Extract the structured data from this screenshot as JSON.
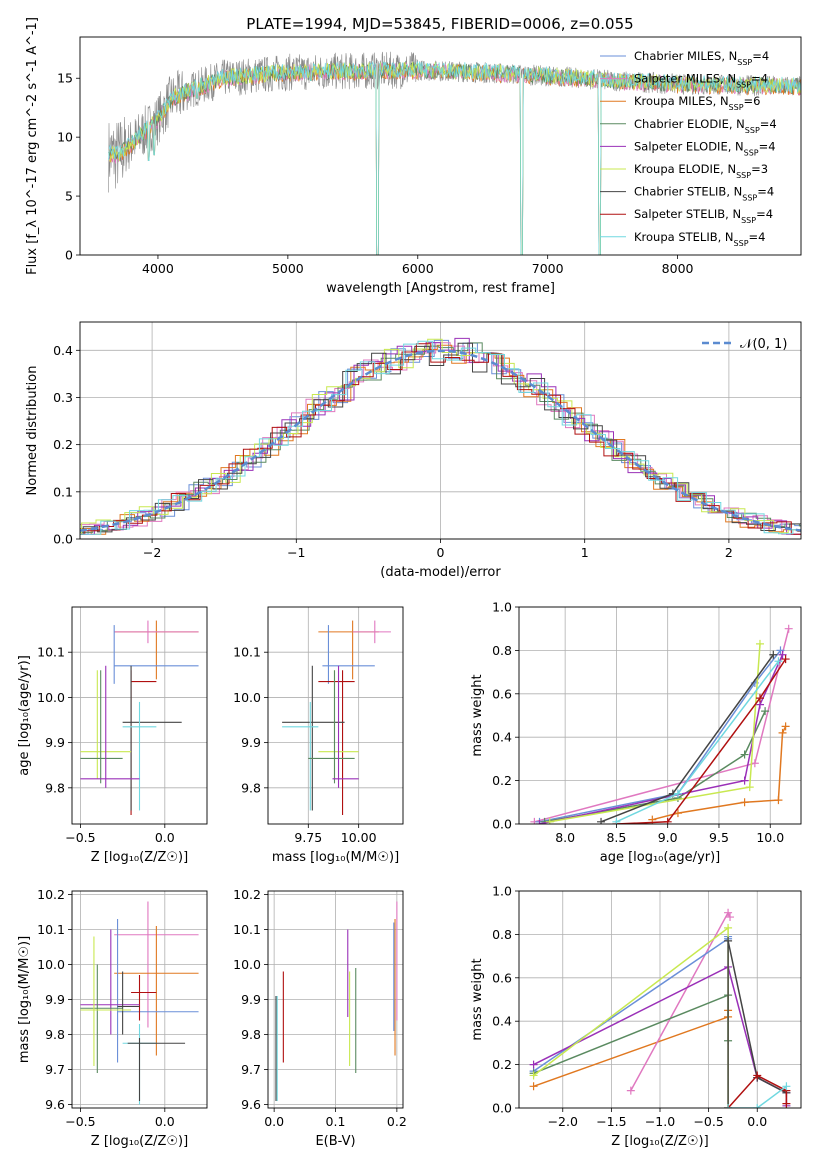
{
  "figure_title": "PLATE=1994, MJD=53845, FIBERID=0006, z=0.055",
  "colors": {
    "Chabrier MILES": "#6a8fd8",
    "Salpeter MILES": "#e078c0",
    "Kroupa MILES": "#e07820",
    "Chabrier ELODIE": "#5a8a60",
    "Salpeter ELODIE": "#9a30b8",
    "Kroupa ELODIE": "#c8e850",
    "Chabrier STELIB": "#444444",
    "Salpeter STELIB": "#b01010",
    "Kroupa STELIB": "#70d8e0",
    "data": "#888888",
    "gauss": "#5b8bd0",
    "grid": "#b0b0b0"
  },
  "chart_data": [
    {
      "id": "spectrum",
      "type": "line",
      "title": "PLATE=1994, MJD=53845, FIBERID=0006, z=0.055",
      "xlabel": "wavelength [Angstrom, rest frame]",
      "ylabel": "Flux [f_λ 10^-17 erg cm^-2 s^-1 A^-1]",
      "xlim": [
        3400,
        8950
      ],
      "ylim": [
        0,
        18.5
      ],
      "xticks": [
        4000,
        5000,
        6000,
        7000,
        8000
      ],
      "yticks": [
        0,
        5,
        10,
        15
      ],
      "grid": false,
      "legend_position": "right",
      "legend": [
        {
          "name": "Chabrier MILES",
          "nssp": "4"
        },
        {
          "name": "Salpeter MILES",
          "nssp": "4"
        },
        {
          "name": "Kroupa MILES",
          "nssp": "6"
        },
        {
          "name": "Chabrier ELODIE",
          "nssp": "4"
        },
        {
          "name": "Salpeter ELODIE",
          "nssp": "4"
        },
        {
          "name": "Kroupa ELODIE",
          "nssp": "3"
        },
        {
          "name": "Chabrier STELIB",
          "nssp": "4"
        },
        {
          "name": "Salpeter STELIB",
          "nssp": "4"
        },
        {
          "name": "Kroupa STELIB",
          "nssp": "4"
        }
      ],
      "continuum": [
        [
          3600,
          8.5
        ],
        [
          3700,
          8.5
        ],
        [
          3800,
          9.5
        ],
        [
          3900,
          10.5
        ],
        [
          4000,
          11.5
        ],
        [
          4100,
          13.2
        ],
        [
          4300,
          14.2
        ],
        [
          4500,
          15.0
        ],
        [
          4700,
          15.2
        ],
        [
          5000,
          15.5
        ],
        [
          5500,
          15.6
        ],
        [
          6000,
          15.7
        ],
        [
          6500,
          15.5
        ],
        [
          7000,
          15.2
        ],
        [
          7500,
          14.8
        ],
        [
          8000,
          14.5
        ],
        [
          8500,
          14.4
        ],
        [
          8950,
          14.3
        ]
      ],
      "dips": [
        [
          3930,
          7.0
        ],
        [
          3970,
          7.5
        ],
        [
          4300,
          12.3
        ],
        [
          5175,
          13.8
        ],
        [
          5690,
          0
        ],
        [
          6800,
          0
        ],
        [
          7400,
          0
        ]
      ]
    },
    {
      "id": "residuals",
      "type": "step",
      "xlabel": "(data-model)/error",
      "ylabel": "Normed distribution",
      "xlim": [
        -2.5,
        2.5
      ],
      "ylim": [
        0,
        0.46
      ],
      "xticks": [
        -2,
        -1,
        0,
        1,
        2
      ],
      "yticks": [
        0.0,
        0.1,
        0.2,
        0.3,
        0.4
      ],
      "grid": true,
      "legend_position": "top-right",
      "gauss_label": "𝒩(0, 1)"
    },
    {
      "id": "age_vs_Z",
      "type": "errorbar",
      "xlabel": "Z [log₁₀(Z/Z☉)]",
      "ylabel": "age  [log₁₀(age/yr)]",
      "xlim": [
        -0.55,
        0.25
      ],
      "ylim": [
        9.72,
        10.2
      ],
      "xticks": [
        -0.5,
        0.0
      ],
      "yticks": [
        9.8,
        9.9,
        10.0,
        10.1
      ],
      "grid": true,
      "points": [
        {
          "s": "Kroupa MILES",
          "x": -0.05,
          "xl": -0.3,
          "xh": 0.2,
          "y": 10.145,
          "yl": 10.04,
          "yh": 10.17
        },
        {
          "s": "Salpeter MILES",
          "x": -0.1,
          "xl": -0.3,
          "xh": 0.2,
          "y": 10.145,
          "yl": 10.12,
          "yh": 10.17
        },
        {
          "s": "Chabrier MILES",
          "x": -0.3,
          "xl": -0.3,
          "xh": 0.2,
          "y": 10.07,
          "yl": 10.03,
          "yh": 10.16
        },
        {
          "s": "Salpeter STELIB",
          "x": -0.2,
          "xl": -0.2,
          "xh": -0.05,
          "y": 10.035,
          "yl": 9.74,
          "yh": 10.06
        },
        {
          "s": "Chabrier STELIB",
          "x": -0.2,
          "xl": -0.25,
          "xh": 0.1,
          "y": 9.945,
          "yl": 9.75,
          "yh": 10.07
        },
        {
          "s": "Kroupa STELIB",
          "x": -0.15,
          "xl": -0.25,
          "xh": -0.05,
          "y": 9.935,
          "yl": 9.75,
          "yh": 9.99
        },
        {
          "s": "Kroupa ELODIE",
          "x": -0.4,
          "xl": -0.5,
          "xh": -0.2,
          "y": 9.88,
          "yl": 9.82,
          "yh": 10.06
        },
        {
          "s": "Chabrier ELODIE",
          "x": -0.38,
          "xl": -0.5,
          "xh": -0.25,
          "y": 9.865,
          "yl": 9.81,
          "yh": 10.06
        },
        {
          "s": "Salpeter ELODIE",
          "x": -0.35,
          "xl": -0.5,
          "xh": -0.15,
          "y": 9.82,
          "yl": 9.8,
          "yh": 10.07
        }
      ]
    },
    {
      "id": "age_vs_mass",
      "type": "errorbar",
      "xlabel": "mass [log₁₀(M/M☉)]",
      "ylabel": "",
      "xlim": [
        9.55,
        10.22
      ],
      "ylim": [
        9.72,
        10.2
      ],
      "xticks": [
        9.75,
        10.0
      ],
      "yticks": [
        9.8,
        9.9,
        10.0,
        10.1
      ],
      "grid": true,
      "points": [
        {
          "s": "Kroupa MILES",
          "x": 9.97,
          "xl": 9.8,
          "xh": 10.1,
          "y": 10.145,
          "yl": 10.04,
          "yh": 10.17
        },
        {
          "s": "Salpeter MILES",
          "x": 10.08,
          "xl": 9.97,
          "xh": 10.16,
          "y": 10.145,
          "yl": 10.12,
          "yh": 10.17
        },
        {
          "s": "Chabrier MILES",
          "x": 9.85,
          "xl": 9.82,
          "xh": 10.08,
          "y": 10.07,
          "yl": 10.03,
          "yh": 10.16
        },
        {
          "s": "Salpeter STELIB",
          "x": 9.92,
          "xl": 9.8,
          "xh": 9.98,
          "y": 10.035,
          "yl": 9.74,
          "yh": 10.06
        },
        {
          "s": "Chabrier STELIB",
          "x": 9.77,
          "xl": 9.62,
          "xh": 9.93,
          "y": 9.945,
          "yl": 9.75,
          "yh": 10.07
        },
        {
          "s": "Kroupa STELIB",
          "x": 9.76,
          "xl": 9.62,
          "xh": 9.8,
          "y": 9.935,
          "yl": 9.75,
          "yh": 9.99
        },
        {
          "s": "Kroupa ELODIE",
          "x": 9.88,
          "xl": 9.8,
          "xh": 10.0,
          "y": 9.88,
          "yl": 9.82,
          "yh": 10.06
        },
        {
          "s": "Chabrier ELODIE",
          "x": 9.88,
          "xl": 9.75,
          "xh": 9.98,
          "y": 9.865,
          "yl": 9.81,
          "yh": 10.06
        },
        {
          "s": "Salpeter ELODIE",
          "x": 9.9,
          "xl": 9.87,
          "xh": 10.0,
          "y": 9.82,
          "yl": 9.8,
          "yh": 10.07
        }
      ]
    },
    {
      "id": "weight_vs_age",
      "type": "line",
      "xlabel": "age  [log₁₀(age/yr)]",
      "ylabel": "mass weight",
      "xlim": [
        7.55,
        10.3
      ],
      "ylim": [
        0,
        1.0
      ],
      "xticks": [
        8.0,
        8.5,
        9.0,
        9.5,
        10.0
      ],
      "yticks": [
        0.0,
        0.2,
        0.4,
        0.6,
        0.8,
        1.0
      ],
      "grid": true,
      "series": [
        {
          "s": "Kroupa MILES",
          "x": [
            8.85,
            9.1,
            9.75,
            10.08,
            10.12,
            10.15
          ],
          "y": [
            0.02,
            0.05,
            0.1,
            0.11,
            0.42,
            0.45
          ]
        },
        {
          "s": "Salpeter MILES",
          "x": [
            7.7,
            9.85,
            10.18
          ],
          "y": [
            0.01,
            0.28,
            0.9
          ]
        },
        {
          "s": "Chabrier MILES",
          "x": [
            7.75,
            9.1,
            9.85,
            10.1
          ],
          "y": [
            0.01,
            0.14,
            0.65,
            0.8
          ]
        },
        {
          "s": "Chabrier ELODIE",
          "x": [
            7.8,
            9.1,
            9.75,
            9.95
          ],
          "y": [
            0.01,
            0.12,
            0.32,
            0.52
          ]
        },
        {
          "s": "Salpeter ELODIE",
          "x": [
            7.75,
            9.75,
            9.9,
            10.12
          ],
          "y": [
            0.0,
            0.2,
            0.55,
            0.78
          ]
        },
        {
          "s": "Kroupa ELODIE",
          "x": [
            7.85,
            9.8,
            9.9
          ],
          "y": [
            0.01,
            0.17,
            0.83
          ]
        },
        {
          "s": "Chabrier STELIB",
          "x": [
            8.35,
            9.05,
            10.03
          ],
          "y": [
            0.01,
            0.14,
            0.78
          ]
        },
        {
          "s": "Salpeter STELIB",
          "x": [
            8.5,
            9.0,
            9.9,
            10.15
          ],
          "y": [
            0.0,
            0.01,
            0.58,
            0.76
          ]
        },
        {
          "s": "Kroupa STELIB",
          "x": [
            8.5,
            9.1,
            10.08
          ],
          "y": [
            0.01,
            0.14,
            0.75
          ]
        }
      ]
    },
    {
      "id": "mass_vs_Z",
      "type": "errorbar",
      "xlabel": "Z [log₁₀(Z/Z☉)]",
      "ylabel": "mass [log₁₀(M/M☉)]",
      "xlim": [
        -0.55,
        0.25
      ],
      "ylim": [
        9.59,
        10.21
      ],
      "xticks": [
        -0.5,
        0.0
      ],
      "yticks": [
        9.6,
        9.7,
        9.8,
        9.9,
        10.0,
        10.1,
        10.2
      ],
      "grid": true,
      "points": [
        {
          "s": "Salpeter MILES",
          "x": -0.1,
          "xl": -0.3,
          "xh": 0.2,
          "y": 10.085,
          "yl": 9.82,
          "yh": 10.18
        },
        {
          "s": "Kroupa MILES",
          "x": -0.05,
          "xl": -0.3,
          "xh": 0.2,
          "y": 9.975,
          "yl": 9.74,
          "yh": 10.11
        },
        {
          "s": "Chabrier MILES",
          "x": -0.28,
          "xl": -0.28,
          "xh": 0.2,
          "y": 9.865,
          "yl": 9.72,
          "yh": 10.13
        },
        {
          "s": "Salpeter STELIB",
          "x": -0.15,
          "xl": -0.2,
          "xh": -0.05,
          "y": 9.92,
          "yl": 9.84,
          "yh": 9.97
        },
        {
          "s": "Salpeter ELODIE",
          "x": -0.32,
          "xl": -0.5,
          "xh": -0.15,
          "y": 9.885,
          "yl": 9.8,
          "yh": 10.1
        },
        {
          "s": "Chabrier STELIB",
          "x": -0.25,
          "xl": -0.28,
          "xh": -0.15,
          "y": 9.88,
          "yl": 9.8,
          "yh": 9.98
        },
        {
          "s": "Chabrier ELODIE",
          "x": -0.4,
          "xl": -0.5,
          "xh": -0.25,
          "y": 9.875,
          "yl": 9.69,
          "yh": 10.0
        },
        {
          "s": "Kroupa ELODIE",
          "x": -0.42,
          "xl": -0.5,
          "xh": -0.2,
          "y": 9.87,
          "yl": 9.71,
          "yh": 10.08
        },
        {
          "s": "Kroupa STELIB",
          "x": -0.15,
          "xl": -0.25,
          "xh": -0.05,
          "y": 9.775,
          "yl": 9.6,
          "yh": 9.83
        },
        {
          "s": "Chabrier STELIB",
          "x": -0.15,
          "xl": -0.22,
          "xh": 0.12,
          "y": 9.775,
          "yl": 9.61,
          "yh": 9.79
        }
      ]
    },
    {
      "id": "mass_vs_ebv",
      "type": "errorbar",
      "xlabel": "E(B-V)",
      "ylabel": "",
      "xlim": [
        -0.01,
        0.21
      ],
      "ylim": [
        9.59,
        10.21
      ],
      "xticks": [
        0.0,
        0.1,
        0.2
      ],
      "yticks": [
        9.6,
        9.7,
        9.8,
        9.9,
        10.0,
        10.1,
        10.2
      ],
      "grid": true,
      "points": [
        {
          "s": "Kroupa STELIB",
          "x": 0.005,
          "y": 9.75,
          "yl": 9.61,
          "yh": 9.91
        },
        {
          "s": "Chabrier STELIB",
          "x": 0.003,
          "y": 9.76,
          "yl": 9.61,
          "yh": 9.91
        },
        {
          "s": "Salpeter STELIB",
          "x": 0.015,
          "y": 9.85,
          "yl": 9.72,
          "yh": 9.98
        },
        {
          "s": "Salpeter ELODIE",
          "x": 0.12,
          "y": 9.98,
          "yl": 9.85,
          "yh": 10.1
        },
        {
          "s": "Kroupa ELODIE",
          "x": 0.123,
          "y": 9.85,
          "yl": 9.71,
          "yh": 9.98
        },
        {
          "s": "Chabrier ELODIE",
          "x": 0.133,
          "y": 9.84,
          "yl": 9.69,
          "yh": 9.99
        },
        {
          "s": "Chabrier MILES",
          "x": 0.195,
          "y": 9.97,
          "yl": 9.81,
          "yh": 10.12
        },
        {
          "s": "Kroupa MILES",
          "x": 0.197,
          "y": 9.86,
          "yl": 9.74,
          "yh": 10.13
        },
        {
          "s": "Salpeter MILES",
          "x": 0.2,
          "y": 10.0,
          "yl": 9.84,
          "yh": 10.18
        }
      ]
    },
    {
      "id": "weight_vs_Z",
      "type": "line",
      "xlabel": "Z [log₁₀(Z/Z☉)]",
      "ylabel": "mass weight",
      "xlim": [
        -2.45,
        0.45
      ],
      "ylim": [
        0,
        1.0
      ],
      "xticks": [
        -2.0,
        -1.5,
        -1.0,
        -0.5,
        0.0
      ],
      "yticks": [
        0.0,
        0.2,
        0.4,
        0.6,
        0.8,
        1.0
      ],
      "grid": true,
      "series": [
        {
          "s": "Kroupa MILES",
          "x": [
            -2.3,
            -0.3,
            -0.3
          ],
          "y": [
            0.1,
            0.42,
            0.45
          ]
        },
        {
          "s": "Salpeter MILES",
          "x": [
            -1.3,
            -0.3,
            -0.28
          ],
          "y": [
            0.08,
            0.9,
            0.88
          ]
        },
        {
          "s": "Chabrier MILES",
          "x": [
            -2.3,
            -0.3,
            -0.3
          ],
          "y": [
            0.17,
            0.78,
            0.79
          ]
        },
        {
          "s": "Chabrier ELODIE",
          "x": [
            -2.3,
            -0.3,
            -0.3
          ],
          "y": [
            0.16,
            0.52,
            0.31
          ]
        },
        {
          "s": "Salpeter ELODIE",
          "x": [
            -2.3,
            -0.3,
            0.0,
            0.3,
            0.3
          ],
          "y": [
            0.2,
            0.65,
            0.14,
            0.07,
            0.01
          ]
        },
        {
          "s": "Kroupa ELODIE",
          "x": [
            -2.3,
            -0.3,
            -0.3
          ],
          "y": [
            0.15,
            0.83,
            0.0
          ]
        },
        {
          "s": "Chabrier STELIB",
          "x": [
            -0.3,
            -0.3,
            0.0,
            0.3
          ],
          "y": [
            0.0,
            0.77,
            0.14,
            0.07
          ]
        },
        {
          "s": "Salpeter STELIB",
          "x": [
            -0.3,
            0.0,
            0.3,
            0.3
          ],
          "y": [
            0.0,
            0.15,
            0.08,
            0.02
          ]
        },
        {
          "s": "Kroupa STELIB",
          "x": [
            -0.3,
            0.0,
            0.3
          ],
          "y": [
            0.0,
            0.0,
            0.1
          ]
        }
      ]
    }
  ]
}
